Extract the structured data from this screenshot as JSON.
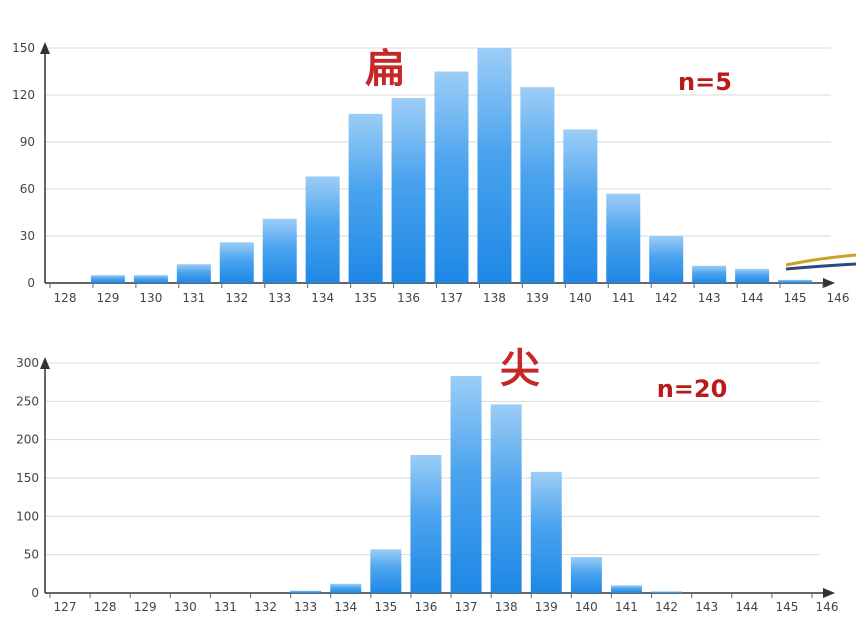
{
  "chart_data": [
    {
      "type": "bar",
      "title": "",
      "annotation_main": "扁",
      "annotation_n": "n=5",
      "xlabel": "",
      "ylabel": "",
      "categories": [
        "128",
        "129",
        "130",
        "131",
        "132",
        "133",
        "134",
        "135",
        "136",
        "137",
        "138",
        "139",
        "140",
        "141",
        "142",
        "143",
        "144",
        "145",
        "146"
      ],
      "values": [
        0,
        5,
        5,
        12,
        26,
        41,
        68,
        108,
        118,
        135,
        150,
        125,
        98,
        57,
        30,
        11,
        9,
        2,
        0
      ],
      "yticks": [
        0,
        30,
        60,
        90,
        120,
        150
      ],
      "ylim": [
        0,
        150
      ],
      "grid": true,
      "bar_color_top": "#8ec6f5",
      "bar_color_bottom": "#1e88e5"
    },
    {
      "type": "bar",
      "title": "",
      "annotation_main": "尖",
      "annotation_n": "n=20",
      "xlabel": "",
      "ylabel": "",
      "categories": [
        "127",
        "128",
        "129",
        "130",
        "131",
        "132",
        "133",
        "134",
        "135",
        "136",
        "137",
        "138",
        "139",
        "140",
        "141",
        "142",
        "143",
        "144",
        "145",
        "146"
      ],
      "values": [
        0,
        0,
        0,
        0,
        0,
        0,
        3,
        12,
        57,
        180,
        283,
        246,
        158,
        47,
        10,
        2,
        0,
        0,
        0,
        0
      ],
      "yticks": [
        0,
        50,
        100,
        150,
        200,
        250,
        300
      ],
      "ylim": [
        0,
        300
      ],
      "grid": true,
      "bar_color_top": "#8ec6f5",
      "bar_color_bottom": "#1e88e5"
    }
  ]
}
